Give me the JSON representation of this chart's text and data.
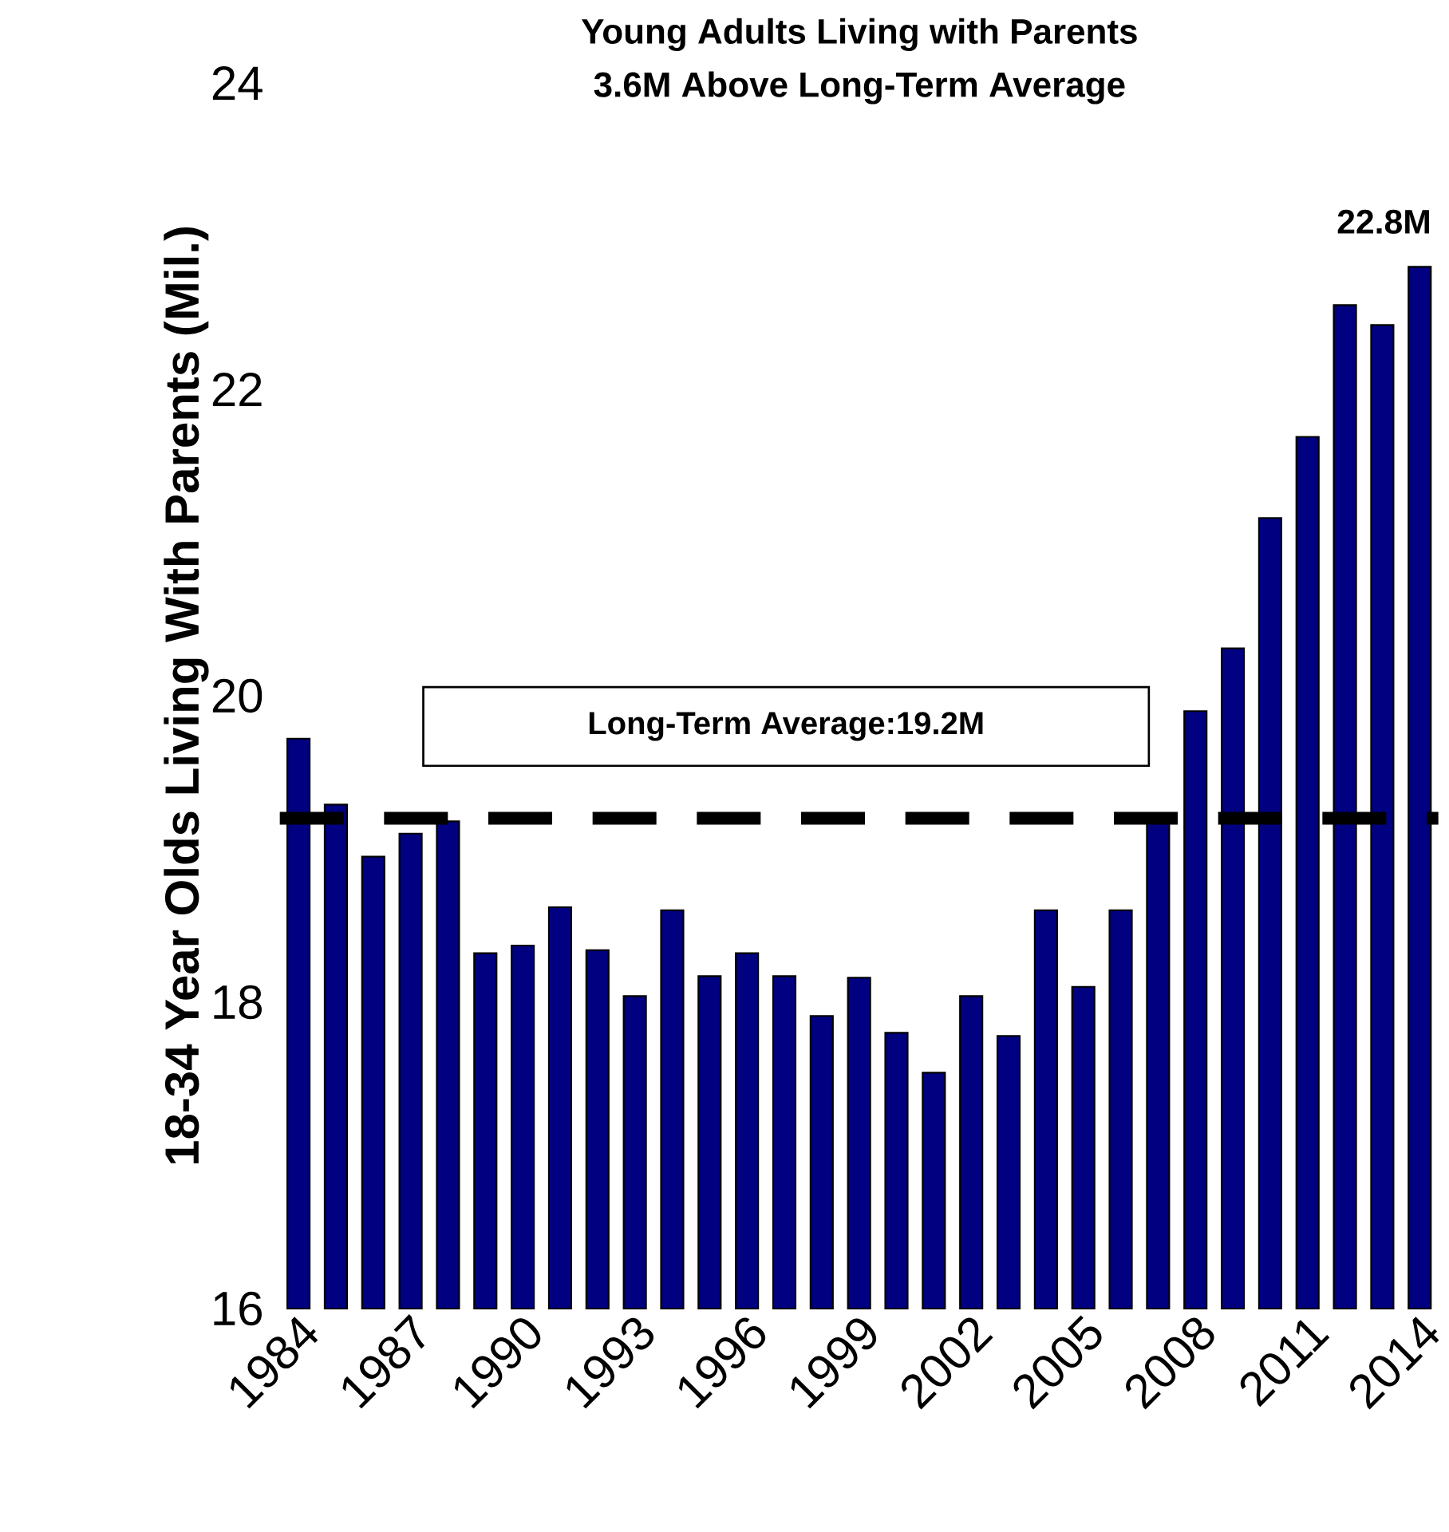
{
  "chart_data": {
    "type": "bar",
    "title": "Young Adults Living with Parents",
    "subtitle": "3.6M Above Long-Term Average",
    "ylabel": "18-34 Year Olds Living With Parents (Mil.)",
    "x": [
      1984,
      1985,
      1986,
      1987,
      1988,
      1989,
      1990,
      1991,
      1992,
      1993,
      1994,
      1995,
      1996,
      1997,
      1998,
      1999,
      2000,
      2001,
      2002,
      2003,
      2004,
      2005,
      2006,
      2007,
      2008,
      2009,
      2010,
      2011,
      2012,
      2013,
      2014
    ],
    "values": [
      19.72,
      19.29,
      18.95,
      19.1,
      19.18,
      18.32,
      18.37,
      18.62,
      18.34,
      18.04,
      18.6,
      18.17,
      18.32,
      18.17,
      17.91,
      18.16,
      17.8,
      17.54,
      18.04,
      17.78,
      18.6,
      18.1,
      18.6,
      19.23,
      19.9,
      20.31,
      21.16,
      21.69,
      22.55,
      22.42,
      22.8
    ],
    "color": "#000080",
    "xlim": [
      1983.5,
      2014.5
    ],
    "xticks": [
      1984,
      1987,
      1990,
      1993,
      1996,
      1999,
      2002,
      2005,
      2008,
      2011,
      2014
    ],
    "ylim": [
      16,
      24
    ],
    "yticks": [
      16,
      18,
      20,
      22,
      24
    ],
    "ref_lines": [
      {
        "axis": "y",
        "value": 19.2,
        "label": "Long-Term Average:19.2M",
        "color": "#000000",
        "line_style": "dashed"
      }
    ],
    "annotations": [
      {
        "text": "22.8M",
        "x": 2014,
        "y": 22.8
      }
    ]
  }
}
